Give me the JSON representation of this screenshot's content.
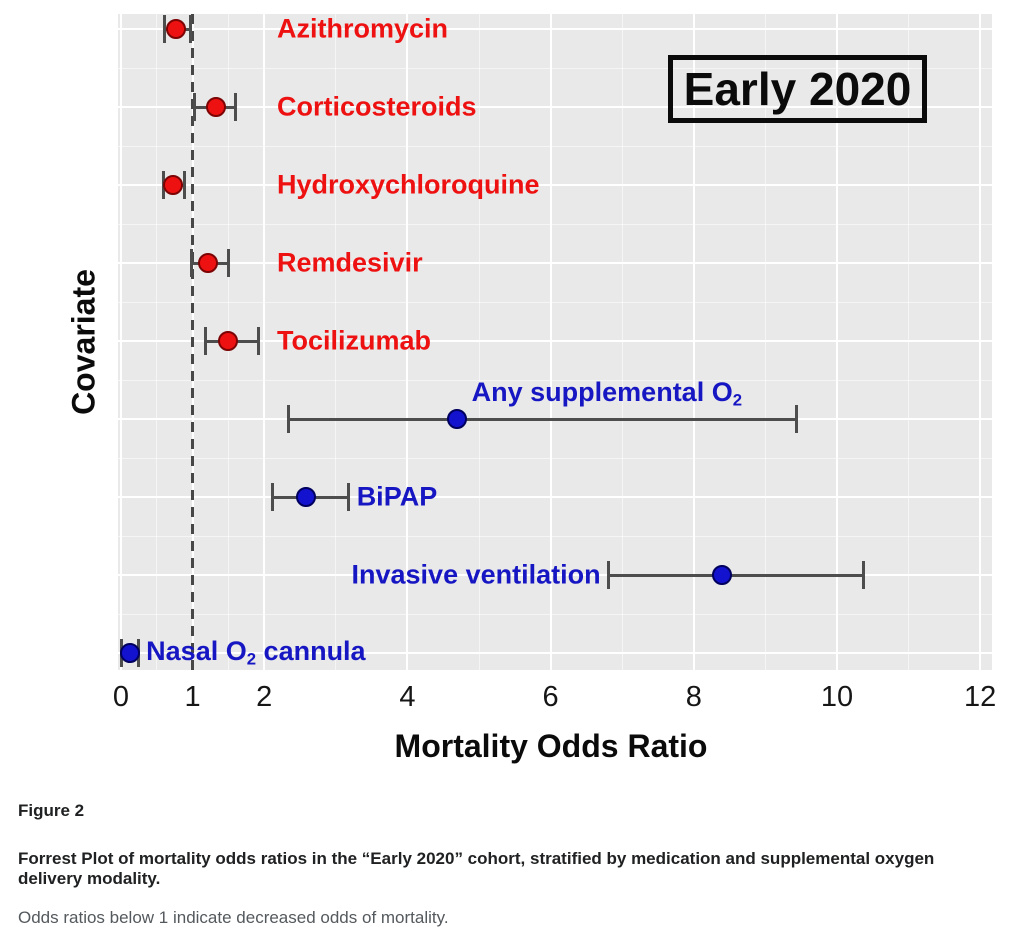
{
  "chart_data": {
    "type": "scatter",
    "subtype": "forest-plot",
    "annotation_box": "Early 2020",
    "xlabel": "Mortality Odds Ratio",
    "ylabel": "Covariate",
    "x_ticks": [
      0,
      1,
      2,
      4,
      6,
      8,
      10,
      12
    ],
    "xlim": [
      -0.05,
      12.2
    ],
    "reference_line_x": 1,
    "grid": true,
    "legend_position": "none",
    "colors": {
      "panel_background": "#e9e9e9",
      "gridline": "#ffffff",
      "errorbar": "#4d4d4d",
      "reference_line": "#474747",
      "medication_red": "#ee1111",
      "oxygen_blue": "#1212cf",
      "label_red": "#ee1111",
      "label_blue": "#1616c3",
      "annotation_border": "#0b0b0b"
    },
    "rows": [
      {
        "label": "Azithromycin",
        "group": "medication",
        "color": "red",
        "odds_ratio": 0.77,
        "ci_low": 0.61,
        "ci_high": 0.97,
        "label_placement": "column"
      },
      {
        "label": "Corticosteroids",
        "group": "medication",
        "color": "red",
        "odds_ratio": 1.33,
        "ci_low": 1.03,
        "ci_high": 1.6,
        "label_placement": "column"
      },
      {
        "label": "Hydroxychloroquine",
        "group": "medication",
        "color": "red",
        "odds_ratio": 0.73,
        "ci_low": 0.59,
        "ci_high": 0.89,
        "label_placement": "column"
      },
      {
        "label": "Remdesivir",
        "group": "medication",
        "color": "red",
        "odds_ratio": 1.21,
        "ci_low": 0.99,
        "ci_high": 1.5,
        "label_placement": "column"
      },
      {
        "label": "Tocilizumab",
        "group": "medication",
        "color": "red",
        "odds_ratio": 1.5,
        "ci_low": 1.18,
        "ci_high": 1.92,
        "label_placement": "column"
      },
      {
        "label": "Any supplemental O2",
        "label_parts": [
          {
            "t": "Any supplemental O"
          },
          {
            "t": "2",
            "sub": true
          }
        ],
        "group": "oxygen",
        "color": "blue",
        "odds_ratio": 4.69,
        "ci_low": 2.34,
        "ci_high": 9.44,
        "label_placement": "above"
      },
      {
        "label": "BiPAP",
        "group": "oxygen",
        "color": "blue",
        "odds_ratio": 2.58,
        "ci_low": 2.11,
        "ci_high": 3.18,
        "label_placement": "right"
      },
      {
        "label": "Invasive ventilation",
        "group": "oxygen",
        "color": "blue",
        "odds_ratio": 8.4,
        "ci_low": 6.81,
        "ci_high": 10.37,
        "label_placement": "left"
      },
      {
        "label": "Nasal O2 cannula",
        "label_parts": [
          {
            "t": "Nasal O"
          },
          {
            "t": "2",
            "sub": true
          },
          {
            "t": " cannula"
          }
        ],
        "group": "oxygen",
        "color": "blue",
        "odds_ratio": 0.12,
        "ci_low": 0.01,
        "ci_high": 0.24,
        "label_placement": "right"
      }
    ]
  },
  "caption": {
    "figure_label": "Figure 2",
    "bold_caption": "Forrest Plot of mortality odds ratios in the “Early 2020” cohort, stratified by medication and supplemental oxygen delivery modality.",
    "note": "Odds ratios below 1 indicate decreased odds of mortality."
  }
}
